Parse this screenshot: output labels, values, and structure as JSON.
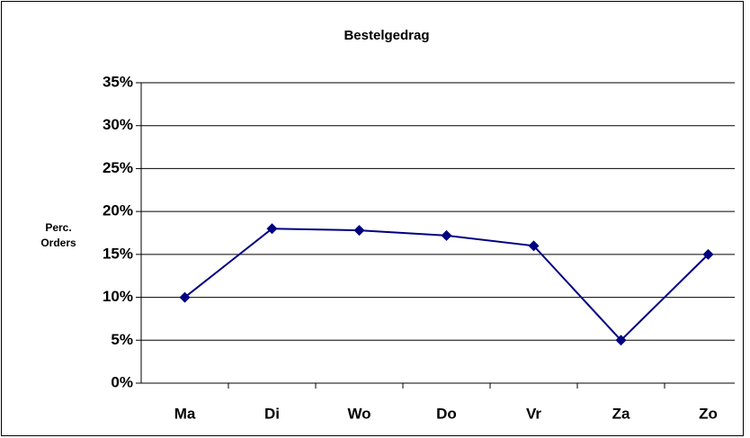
{
  "chart_data": {
    "type": "line",
    "title": "Bestelgedrag",
    "ylabel": [
      "Perc.",
      "Orders"
    ],
    "categories": [
      "Ma",
      "Di",
      "Wo",
      "Do",
      "Vr",
      "Za",
      "Zo"
    ],
    "series": [
      {
        "name": "Perc. Orders",
        "color": "#000080",
        "values": [
          10,
          18,
          17.8,
          17.2,
          16,
          5,
          15
        ]
      }
    ],
    "ylim": [
      0,
      35
    ],
    "yticks": [
      {
        "value": 0,
        "label": "0%"
      },
      {
        "value": 5,
        "label": "5%"
      },
      {
        "value": 10,
        "label": "10%"
      },
      {
        "value": 15,
        "label": "15%"
      },
      {
        "value": 20,
        "label": "20%"
      },
      {
        "value": 25,
        "label": "25%"
      },
      {
        "value": 30,
        "label": "30%"
      },
      {
        "value": 35,
        "label": "35%"
      }
    ],
    "grid": true
  }
}
